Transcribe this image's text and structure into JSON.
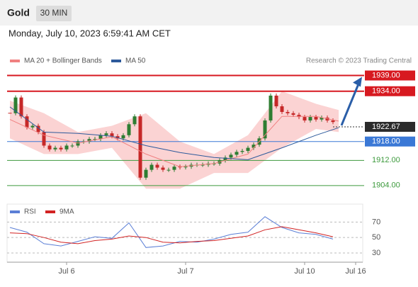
{
  "header": {
    "symbol": "Gold",
    "interval": "30 MIN",
    "timestamp": "Monday, July 10, 2023 6:59:41 AM CET"
  },
  "chart_data": [
    {
      "type": "candlestick",
      "credit": "Research © 2023 Trading Central",
      "close": [
        1927,
        1932,
        1926,
        1922.5,
        1923,
        1921,
        1916.7,
        1915.5,
        1916,
        1915.5,
        1916.7,
        1916.7,
        1918,
        1918,
        1918.8,
        1918.8,
        1920,
        1920.6,
        1919.7,
        1919,
        1920,
        1923.5,
        1926,
        1906.5,
        1909,
        1910.6,
        1909.7,
        1909,
        1909,
        1910,
        1909.8,
        1910,
        1910.6,
        1910.6,
        1910.6,
        1911,
        1911,
        1912,
        1912.9,
        1913.8,
        1914.7,
        1915,
        1916,
        1917,
        1919,
        1924.7,
        1932.6,
        1929.2,
        1927.4,
        1927,
        1926.5,
        1925.8,
        1924.7,
        1925.8,
        1925,
        1925.6,
        1924.7,
        1924.2
      ],
      "up_color": "#2e7d32",
      "down_color": "#c62828",
      "series": [
        {
          "name": "MA 20 + Bollinger Bands",
          "color": "#f08080",
          "band_color": "#fbd3d3",
          "x": [
            0,
            6,
            12,
            18,
            24,
            30,
            36,
            42,
            48,
            54,
            58
          ],
          "values": [
            1925,
            1920,
            1917.5,
            1919.5,
            1914,
            1910,
            1911,
            1914,
            1926,
            1926,
            1924.5
          ],
          "upper": [
            1931,
            1927,
            1921,
            1923,
            1927,
            1918,
            1914,
            1920,
            1934,
            1930,
            1928
          ],
          "lower": [
            1919,
            1914,
            1914,
            1916,
            1903,
            1903,
            1908,
            1908,
            1916,
            1922,
            1921
          ]
        },
        {
          "name": "MA 50",
          "color": "#2d5a9b",
          "x": [
            0,
            6,
            12,
            18,
            24,
            30,
            36,
            42,
            48,
            54,
            58
          ],
          "values": [
            1929,
            1921,
            1920.6,
            1919.7,
            1916.7,
            1914.5,
            1912.9,
            1912.2,
            1916,
            1920,
            1922.4
          ]
        }
      ],
      "levels": [
        {
          "value": 1939,
          "label": "1939.00",
          "color": "#d71920",
          "boxed": true
        },
        {
          "value": 1934,
          "label": "1934.00",
          "color": "#d71920",
          "boxed": true
        },
        {
          "value": 1918,
          "label": "1918.00",
          "color": "#3a78d6",
          "boxed": true
        },
        {
          "value": 1912,
          "label": "1912.00",
          "color": "#3d9a3d",
          "boxed": false
        },
        {
          "value": 1904,
          "label": "1904.00",
          "color": "#3d9a3d",
          "boxed": false
        }
      ],
      "current": {
        "value": 1922.67,
        "label": "1922.67",
        "color": "#2b2b2b"
      },
      "xlim": [
        0,
        62
      ],
      "ylim": [
        1899,
        1942.5
      ]
    },
    {
      "type": "line",
      "series": [
        {
          "name": "RSI",
          "color": "#5b7fd6",
          "x": [
            0,
            3,
            6,
            9,
            12,
            15,
            18,
            21,
            24,
            27,
            30,
            33,
            36,
            39,
            42,
            45,
            48,
            51,
            54,
            57
          ],
          "values": [
            63,
            57,
            42,
            39,
            45,
            51,
            49,
            69,
            37,
            39,
            45,
            44,
            48,
            54,
            57,
            77,
            63,
            56,
            54,
            48
          ]
        },
        {
          "name": "9MA",
          "color": "#d22222",
          "x": [
            0,
            3,
            6,
            9,
            12,
            15,
            18,
            21,
            24,
            27,
            30,
            33,
            36,
            39,
            42,
            45,
            48,
            51,
            54,
            57
          ],
          "values": [
            56,
            55,
            50,
            44,
            42,
            46,
            48,
            52,
            50,
            44,
            43,
            45,
            46,
            49,
            52,
            60,
            64,
            60,
            56,
            51
          ]
        }
      ],
      "ylim": [
        18,
        86
      ],
      "yticks": [
        70,
        50,
        30
      ],
      "xlim": [
        0,
        62
      ],
      "xticks": [
        {
          "value": 10,
          "label": "Jul 6"
        },
        {
          "value": 31,
          "label": "Jul 7"
        },
        {
          "value": 52,
          "label": "Jul 10"
        },
        {
          "value": 61,
          "label": "Jul 16"
        }
      ]
    }
  ]
}
